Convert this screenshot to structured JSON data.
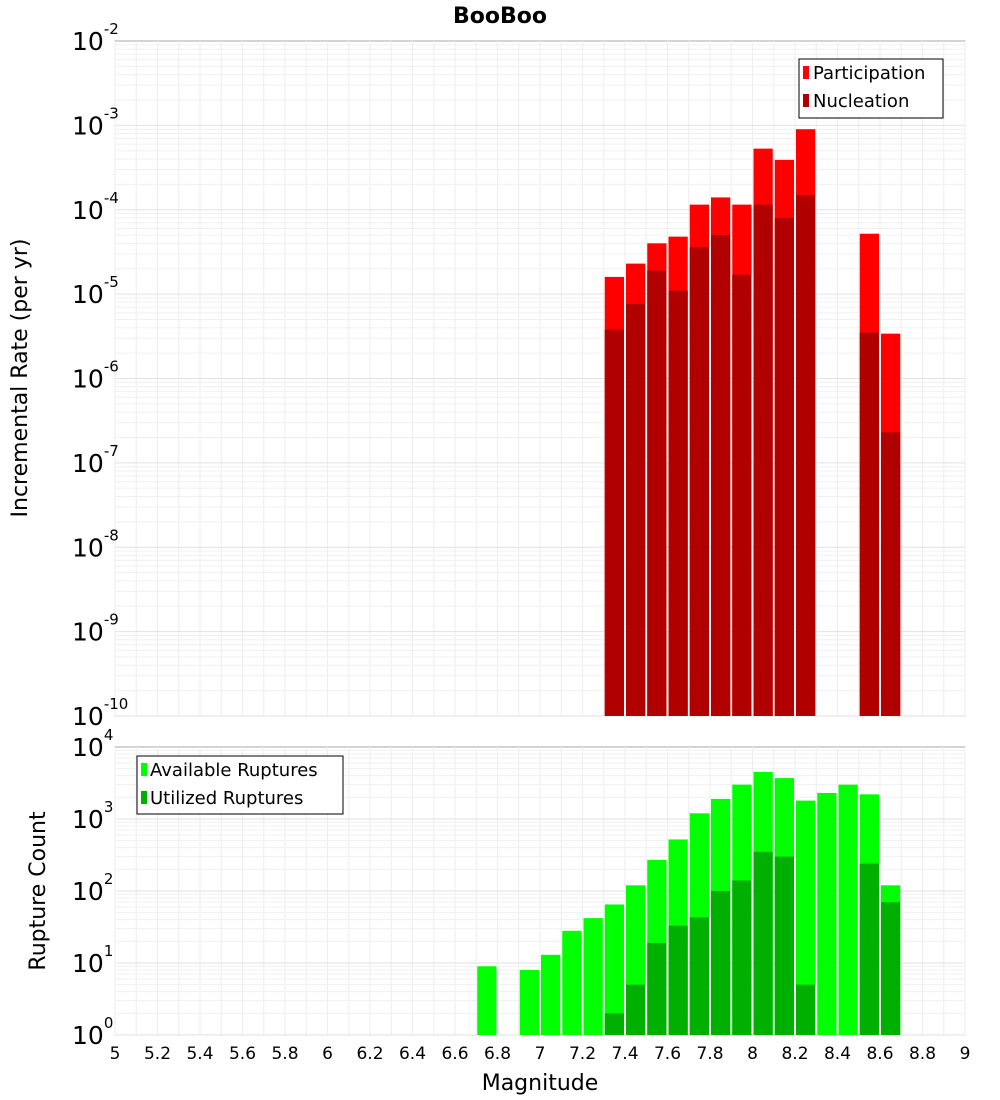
{
  "chart_data": [
    {
      "type": "bar",
      "title": "BooBoo",
      "ylabel": "Incremental Rate (per yr)",
      "yscale": "log",
      "ylim": [
        1e-10,
        0.01
      ],
      "xlim": [
        5,
        9
      ],
      "bin_width": 0.1,
      "legend_position": "top-right",
      "x": [
        7.35,
        7.45,
        7.55,
        7.65,
        7.75,
        7.85,
        7.95,
        8.05,
        8.15,
        8.25,
        8.55,
        8.65
      ],
      "series": [
        {
          "name": "Participation",
          "color": "#ff0000",
          "values": [
            1.6e-05,
            2.3e-05,
            4e-05,
            4.8e-05,
            0.000115,
            0.00014,
            0.000115,
            0.00053,
            0.00039,
            0.0009,
            5.2e-05,
            3.4e-06
          ]
        },
        {
          "name": "Nucleation",
          "color": "#b00000",
          "values": [
            3.8e-06,
            7.6e-06,
            1.9e-05,
            1.1e-05,
            3.6e-05,
            5e-05,
            1.7e-05,
            0.000115,
            8e-05,
            0.00015,
            3.5e-06,
            2.3e-07
          ]
        }
      ]
    },
    {
      "type": "bar",
      "title": "",
      "xlabel": "Magnitude",
      "ylabel": "Rupture Count",
      "yscale": "log",
      "ylim": [
        1,
        10000
      ],
      "xlim": [
        5,
        9
      ],
      "bin_width": 0.1,
      "legend_position": "top-left",
      "xticks": [
        "5",
        "5.2",
        "5.4",
        "5.6",
        "5.8",
        "6",
        "6.2",
        "6.4",
        "6.6",
        "6.8",
        "7",
        "7.2",
        "7.4",
        "7.6",
        "7.8",
        "8",
        "8.2",
        "8.4",
        "8.6",
        "8.8",
        "9"
      ],
      "x": [
        6.75,
        6.95,
        7.05,
        7.15,
        7.25,
        7.35,
        7.45,
        7.55,
        7.65,
        7.75,
        7.85,
        7.95,
        8.05,
        8.15,
        8.25,
        8.35,
        8.45,
        8.55,
        8.65
      ],
      "series": [
        {
          "name": "Available Ruptures",
          "color": "#00ff00",
          "values": [
            9,
            8,
            13,
            28,
            42,
            65,
            120,
            270,
            520,
            1200,
            1900,
            3000,
            4500,
            3700,
            1800,
            2300,
            3000,
            2200,
            120
          ]
        },
        {
          "name": "Utilized Ruptures",
          "color": "#00b000",
          "values": [
            0,
            0,
            0,
            0,
            0,
            2,
            5,
            19,
            33,
            43,
            100,
            140,
            350,
            300,
            5,
            0,
            0,
            240,
            70
          ]
        }
      ]
    }
  ]
}
